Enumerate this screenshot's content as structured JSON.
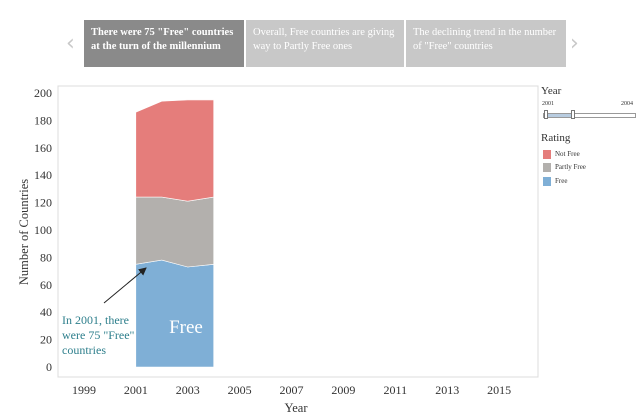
{
  "story": {
    "tabs": [
      {
        "label": "There were 75 \"Free\" countries at the turn of the millennium",
        "active": true
      },
      {
        "label": "Overall, Free countries are giving way to Partly Free ones",
        "active": false
      },
      {
        "label": "The declining trend in the number of \"Free\" countries",
        "active": false
      }
    ],
    "prev_icon": "chevron-left-icon",
    "next_icon": "chevron-right-icon"
  },
  "annotation": {
    "lines": [
      "In 2001, there",
      "were 75 \"Free\"",
      "countries"
    ]
  },
  "area_label": "Free",
  "legend": {
    "year_title": "Year",
    "slider_min": "2001",
    "slider_max": "2004",
    "rating_title": "Rating",
    "items": [
      {
        "label": "Not Free",
        "color": "#e57d7b"
      },
      {
        "label": "Partly Free",
        "color": "#b3b0ad"
      },
      {
        "label": "Free",
        "color": "#7fafd6"
      }
    ]
  },
  "chart_data": {
    "type": "area",
    "stacked": true,
    "title": "",
    "xlabel": "Year",
    "ylabel": "Number of Countries",
    "xlim": [
      1998,
      2016.5
    ],
    "ylim": [
      0,
      200
    ],
    "x_ticks": [
      1999,
      2001,
      2003,
      2005,
      2007,
      2009,
      2011,
      2013,
      2015
    ],
    "y_ticks": [
      0,
      20,
      40,
      60,
      80,
      100,
      120,
      140,
      160,
      180,
      200
    ],
    "x": [
      2001,
      2002,
      2003,
      2004
    ],
    "series": [
      {
        "name": "Free",
        "color": "#7fafd6",
        "values": [
          75,
          78,
          73,
          75
        ]
      },
      {
        "name": "Partly Free",
        "color": "#b3b0ad",
        "values": [
          49,
          46,
          48,
          49
        ]
      },
      {
        "name": "Not Free",
        "color": "#e57d7b",
        "values": [
          62,
          70,
          74,
          71
        ]
      }
    ],
    "annotation_point": {
      "x": 2001,
      "y": 75
    }
  }
}
